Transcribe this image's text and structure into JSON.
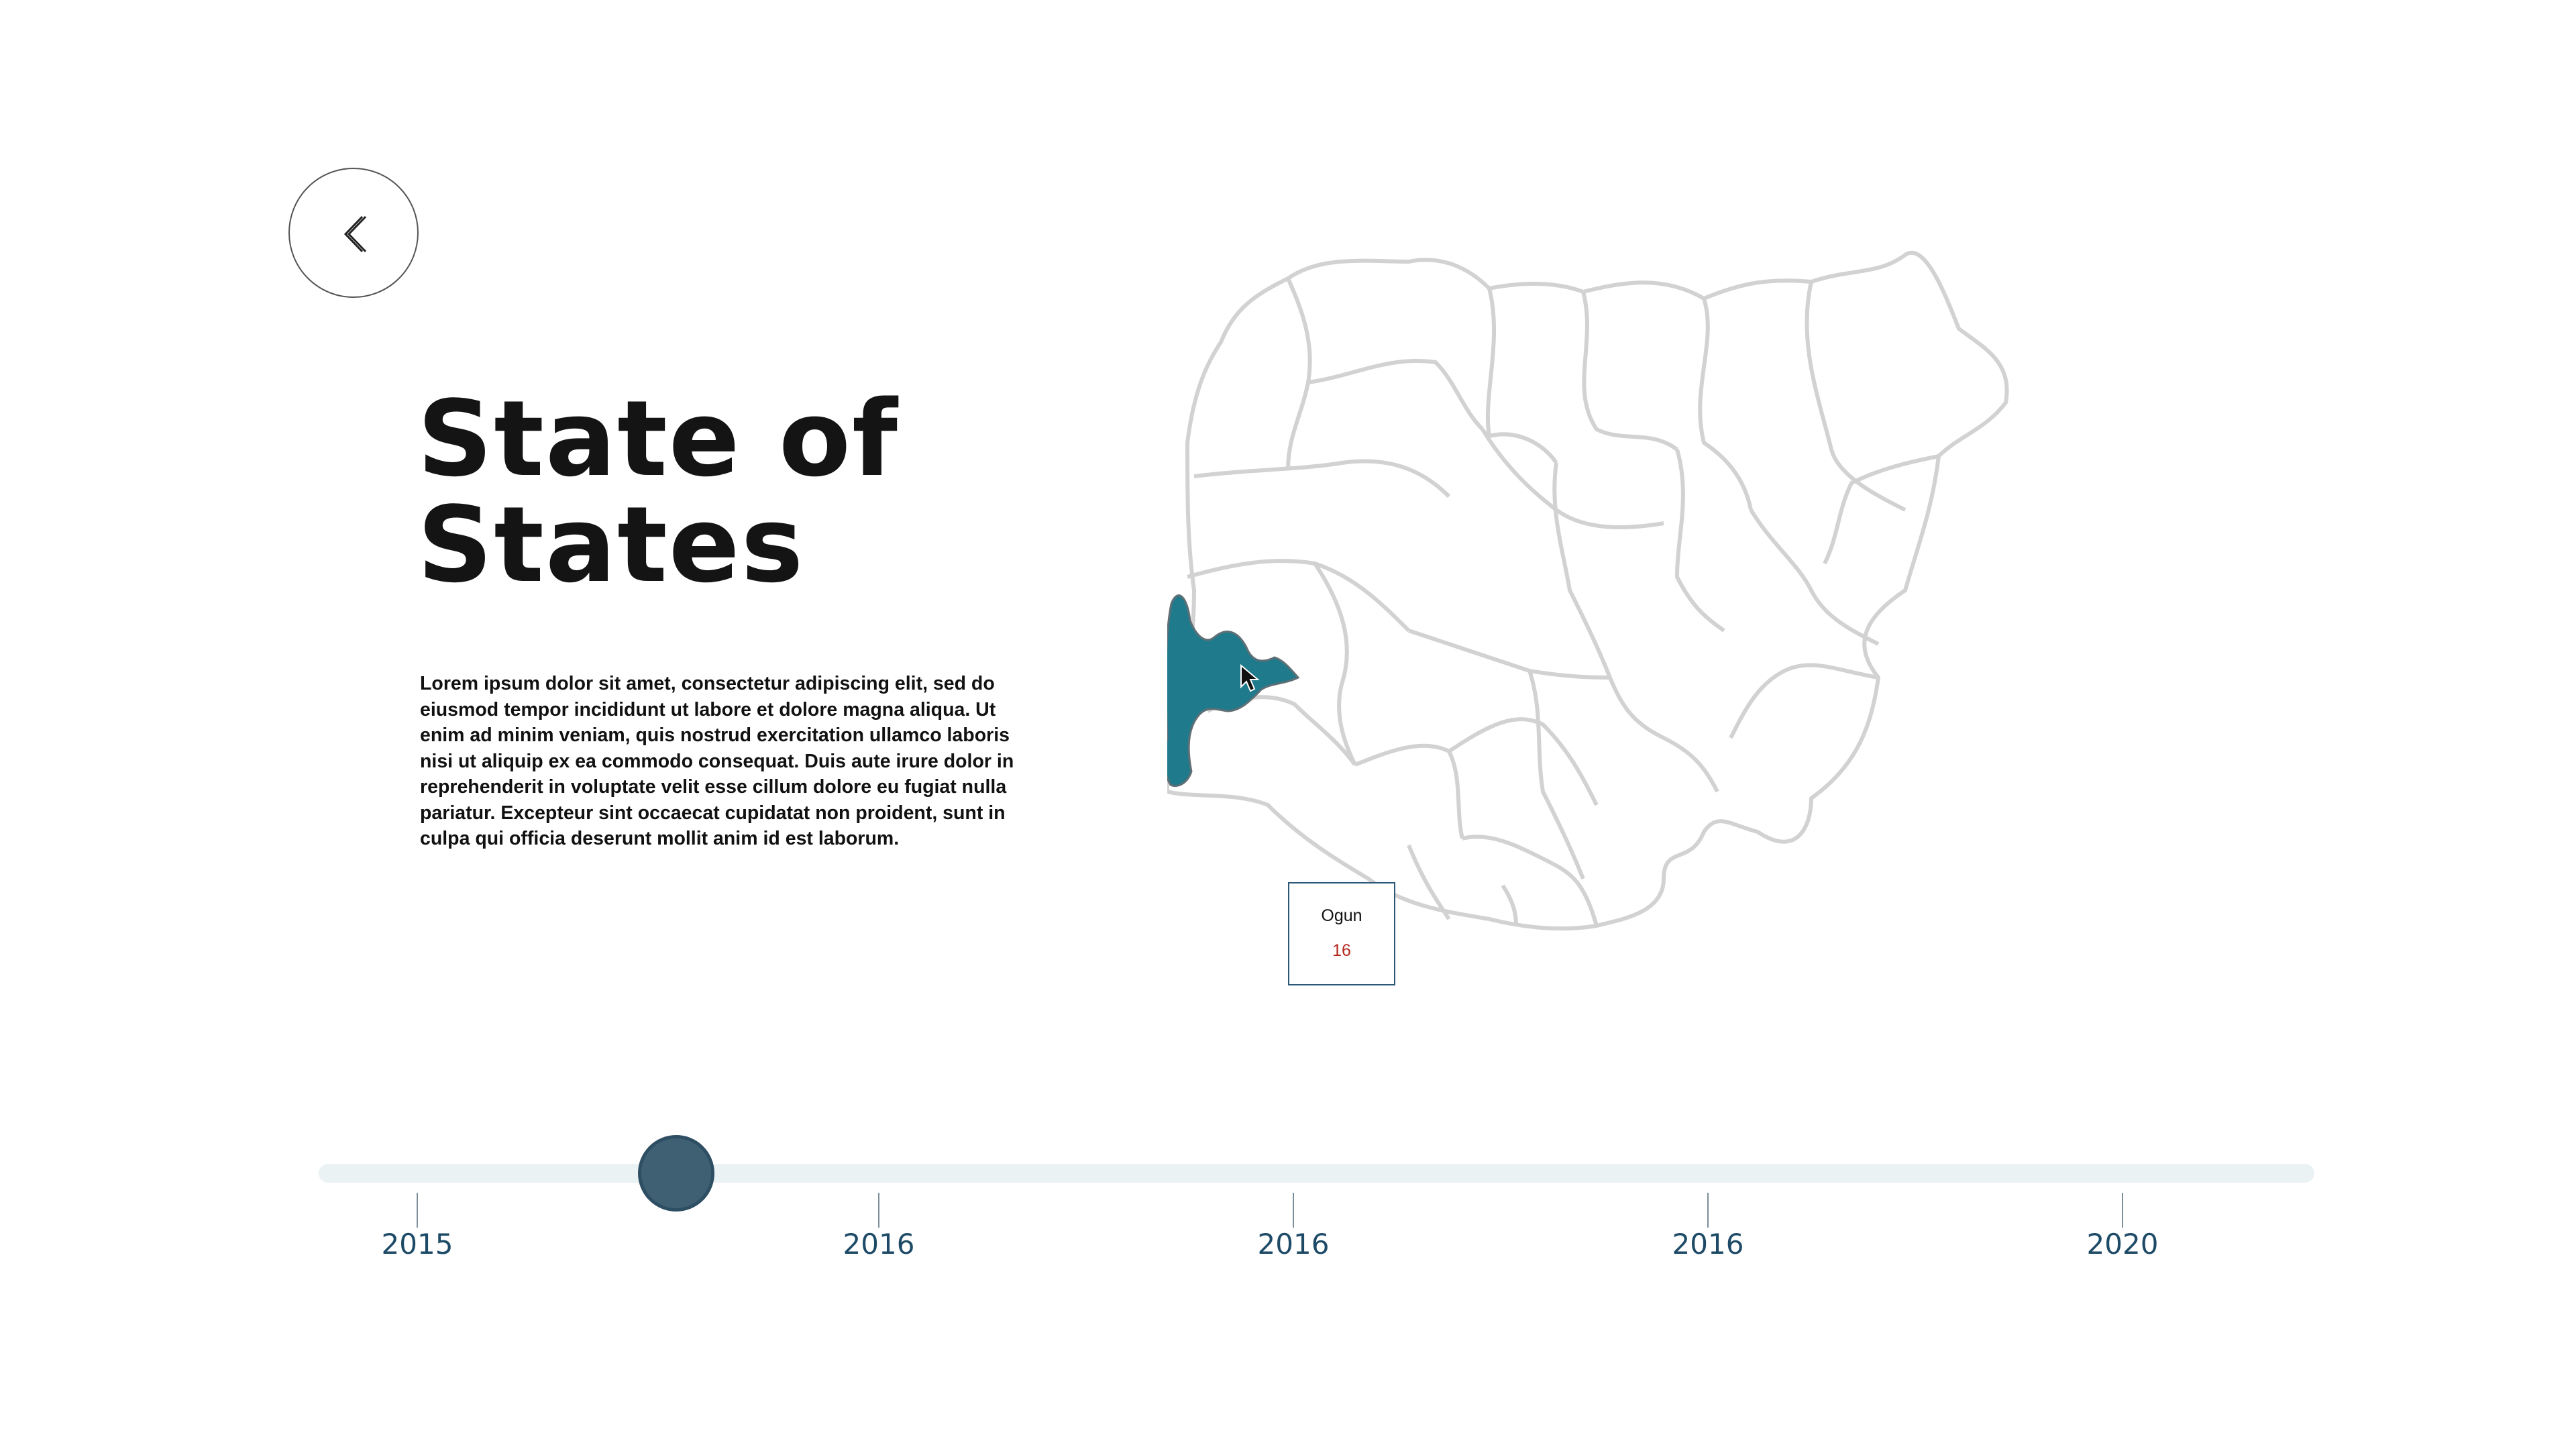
{
  "page": {
    "title_line1": "State of",
    "title_line2": "States",
    "description": "Lorem ipsum dolor sit amet, consectetur adipiscing elit, sed do eiusmod tempor incididunt ut labore et dolore magna aliqua. Ut enim ad minim veniam, quis nostrud exercitation ullamco laboris nisi ut aliquip ex ea commodo consequat. Duis aute irure dolor in reprehenderit in voluptate velit esse cillum dolore eu fugiat nulla pariatur. Excepteur sint occaecat cupidatat non proident, sunt in culpa qui officia deserunt mollit anim id est laborum."
  },
  "back_button": {
    "icon": "chevron-left-icon"
  },
  "map": {
    "highlighted_state": "Ogun",
    "highlight_color": "#1f7a8c",
    "outline_color": "#d0d0d0"
  },
  "tooltip": {
    "state": "Ogun",
    "value": "16",
    "value_color": "#b3261e"
  },
  "timeline": {
    "ticks": [
      "2015",
      "2016",
      "2016",
      "2016",
      "2020"
    ],
    "knob_fraction": 0.179,
    "track_color": "#eaf2f4",
    "knob_color": "#3f5f73"
  }
}
